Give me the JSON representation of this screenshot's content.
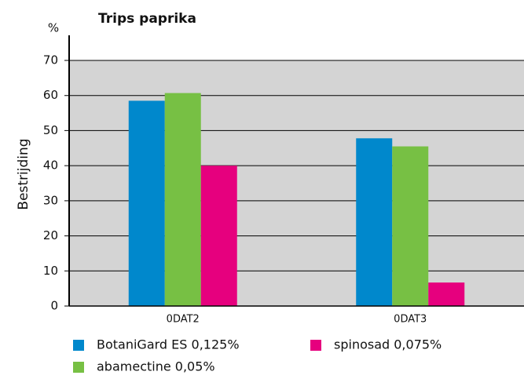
{
  "chart_data": {
    "type": "bar",
    "title": "Trips paprika",
    "y_unit": "%",
    "y_label": "Bestrijding",
    "categories": [
      "0DAT2",
      "0DAT3"
    ],
    "series": [
      {
        "name": "BotaniGard ES 0,125%",
        "color": "#0088cc",
        "values": [
          58.5,
          47.8
        ]
      },
      {
        "name": "abamectine 0,05%",
        "color": "#77c044",
        "values": [
          60.7,
          45.5
        ]
      },
      {
        "name": "spinosad 0,075%",
        "color": "#e6007e",
        "values": [
          40,
          6.7
        ]
      }
    ],
    "ylim": [
      0,
      70
    ],
    "yticks": [
      0,
      10,
      20,
      30,
      40,
      50,
      60,
      70
    ],
    "grid": true
  }
}
